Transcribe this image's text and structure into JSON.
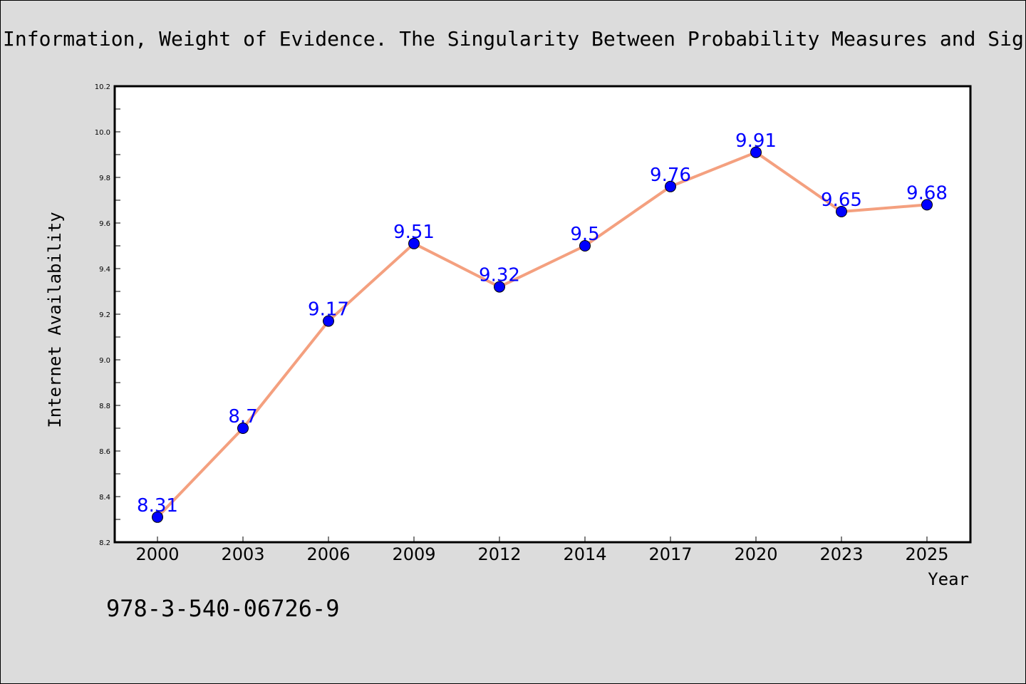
{
  "page": {
    "title": "Information, Weight of Evidence. The Singularity Between Probability Measures and Signal Detection",
    "footer": "978-3-540-06726-9"
  },
  "colors": {
    "line": "#f4a07f",
    "marker": "#0000ff",
    "data_label": "#0000ff"
  },
  "chart_data": {
    "type": "line",
    "title": "Information, Weight of Evidence. The Singularity Between Probability Measures and Signal Detection",
    "xlabel": "Year",
    "ylabel": "Internet Availability",
    "categories": [
      "2000",
      "2003",
      "2006",
      "2009",
      "2012",
      "2014",
      "2017",
      "2020",
      "2023",
      "2025"
    ],
    "series": [
      {
        "values": [
          8.31,
          8.7,
          9.17,
          9.51,
          9.32,
          9.5,
          9.76,
          9.91,
          9.65,
          9.68
        ],
        "labels": [
          "8.31",
          "8.7",
          "9.17",
          "9.51",
          "9.32",
          "9.5",
          "9.76",
          "9.91",
          "9.65",
          "9.68"
        ]
      }
    ],
    "ylim": [
      8.2,
      10.2
    ],
    "yticks": [
      "8.2",
      "8.4",
      "8.6",
      "8.8",
      "9.0",
      "9.2",
      "9.4",
      "9.6",
      "9.8",
      "10.0",
      "10.2"
    ],
    "grid": false,
    "legend": "none",
    "marker": "circle"
  }
}
